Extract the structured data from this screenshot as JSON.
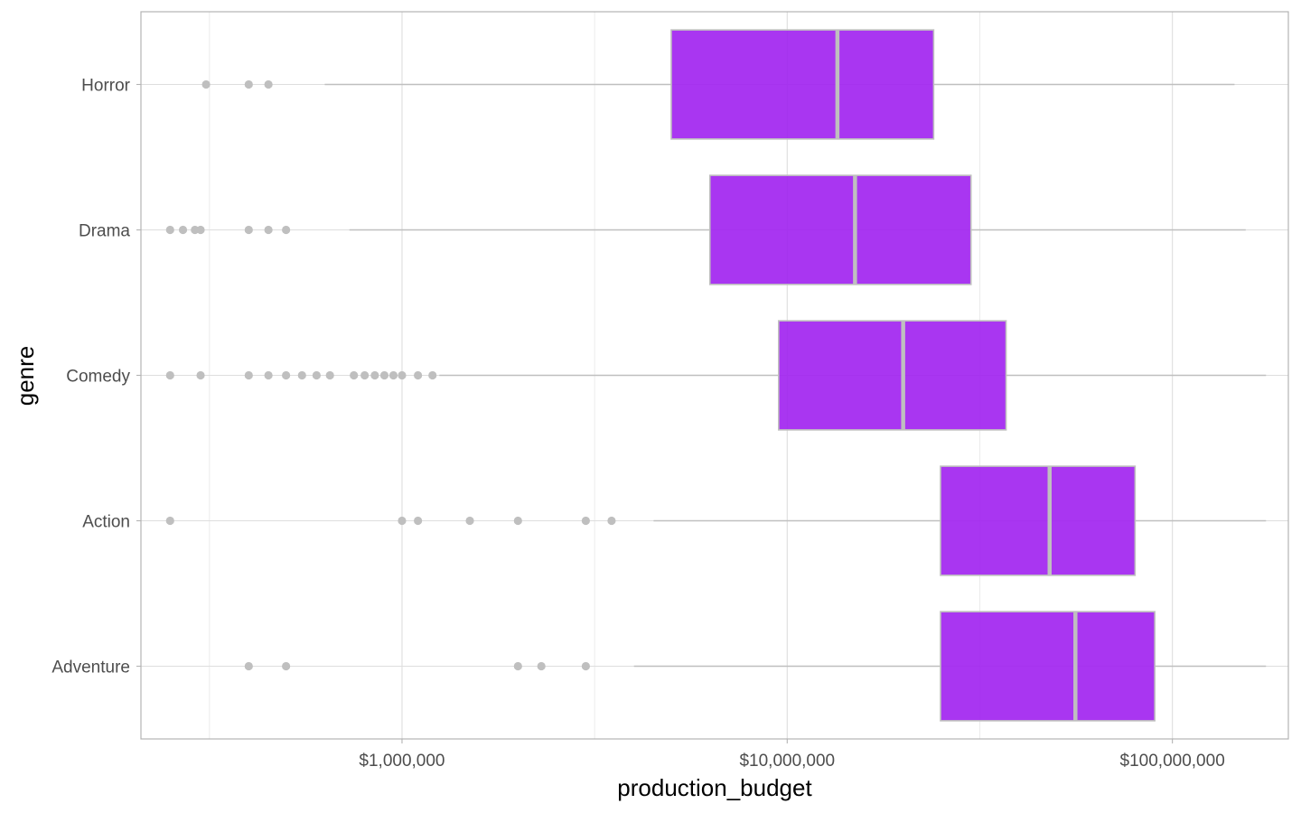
{
  "chart_data": {
    "type": "boxplot",
    "orientation": "horizontal",
    "xlabel": "production_budget",
    "ylabel": "genre",
    "x_scale": "log10",
    "xlim": [
      210000,
      200000000
    ],
    "x_ticks": [
      {
        "value": 1000000,
        "label": "$1,000,000"
      },
      {
        "value": 10000000,
        "label": "$10,000,000"
      },
      {
        "value": 100000000,
        "label": "$100,000,000"
      }
    ],
    "x_minor_gridlines": [
      316228,
      3162278,
      31622777
    ],
    "categories": [
      "Horror",
      "Drama",
      "Comedy",
      "Action",
      "Adventure"
    ],
    "box_fill": "#a020f0",
    "outline_color": "#bfbfbf",
    "outlier_color": "#bfbfbf",
    "grid": true,
    "series": [
      {
        "category": "Horror",
        "whisker_low": 630000,
        "q1": 5000000,
        "median": 13500000,
        "q3": 24000000,
        "whisker_high": 145000000,
        "outliers": [
          310000,
          400000,
          450000
        ]
      },
      {
        "category": "Drama",
        "whisker_low": 730000,
        "q1": 6300000,
        "median": 15000000,
        "q3": 30000000,
        "whisker_high": 155000000,
        "outliers": [
          250000,
          270000,
          290000,
          300000,
          400000,
          450000,
          500000
        ]
      },
      {
        "category": "Comedy",
        "whisker_low": 1250000,
        "q1": 9500000,
        "median": 20000000,
        "q3": 37000000,
        "whisker_high": 175000000,
        "outliers": [
          250000,
          300000,
          400000,
          450000,
          500000,
          550000,
          600000,
          650000,
          750000,
          800000,
          850000,
          900000,
          950000,
          1000000,
          1100000,
          1200000
        ]
      },
      {
        "category": "Action",
        "whisker_low": 4500000,
        "q1": 25000000,
        "median": 48000000,
        "q3": 80000000,
        "whisker_high": 175000000,
        "outliers": [
          250000,
          1000000,
          1100000,
          1500000,
          2000000,
          3000000,
          3500000
        ]
      },
      {
        "category": "Adventure",
        "whisker_low": 4000000,
        "q1": 25000000,
        "median": 56000000,
        "q3": 90000000,
        "whisker_high": 175000000,
        "outliers": [
          400000,
          500000,
          2000000,
          2300000,
          3000000
        ]
      }
    ]
  }
}
